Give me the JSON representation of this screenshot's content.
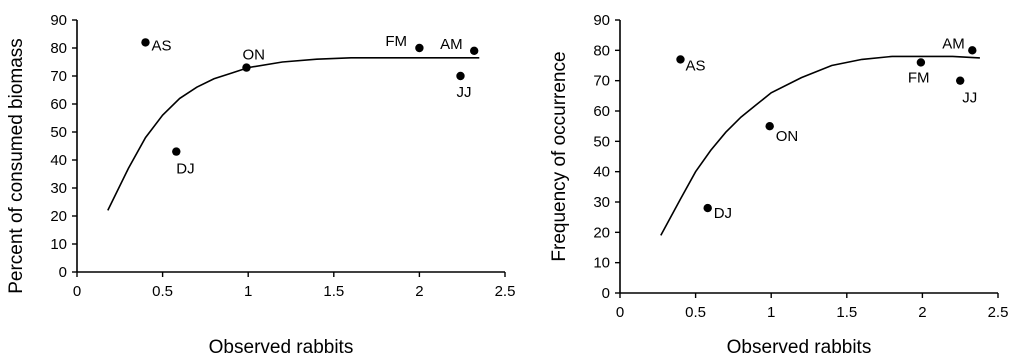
{
  "chart_data": [
    {
      "type": "scatter",
      "title": "",
      "xlabel": "Observed rabbits",
      "ylabel": "Percent of consumed biomass",
      "xlim": [
        0,
        2.5
      ],
      "ylim": [
        0,
        90
      ],
      "x_ticks": [
        "0",
        "0.5",
        "1",
        "1.5",
        "2",
        "2.5"
      ],
      "y_ticks": [
        "0",
        "10",
        "20",
        "30",
        "40",
        "50",
        "60",
        "70",
        "80",
        "90"
      ],
      "points": [
        {
          "label": "AS",
          "x": 0.4,
          "y": 82
        },
        {
          "label": "DJ",
          "x": 0.58,
          "y": 43
        },
        {
          "label": "ON",
          "x": 0.99,
          "y": 73
        },
        {
          "label": "FM",
          "x": 2.0,
          "y": 80
        },
        {
          "label": "JJ",
          "x": 2.24,
          "y": 70
        },
        {
          "label": "AM",
          "x": 2.32,
          "y": 79
        }
      ],
      "fit_curve": {
        "x": [
          0.18,
          0.3,
          0.4,
          0.5,
          0.6,
          0.7,
          0.8,
          0.9,
          1.0,
          1.2,
          1.4,
          1.6,
          1.8,
          2.0,
          2.2,
          2.35
        ],
        "y": [
          22,
          37,
          48,
          56,
          62,
          66,
          69,
          71,
          73,
          75,
          76,
          76.5,
          76.5,
          76.5,
          76.5,
          76.5
        ]
      }
    },
    {
      "type": "scatter",
      "title": "",
      "xlabel": "Observed rabbits",
      "ylabel": "Frequency of occurrence",
      "xlim": [
        0,
        2.5
      ],
      "ylim": [
        0,
        90
      ],
      "x_ticks": [
        "0",
        "0.5",
        "1",
        "1.5",
        "2",
        "2.5"
      ],
      "y_ticks": [
        "0",
        "10",
        "20",
        "30",
        "40",
        "50",
        "60",
        "70",
        "80",
        "90"
      ],
      "points": [
        {
          "label": "AS",
          "x": 0.4,
          "y": 77
        },
        {
          "label": "DJ",
          "x": 0.58,
          "y": 28
        },
        {
          "label": "ON",
          "x": 0.99,
          "y": 55
        },
        {
          "label": "FM",
          "x": 1.99,
          "y": 76
        },
        {
          "label": "JJ",
          "x": 2.25,
          "y": 70
        },
        {
          "label": "AM",
          "x": 2.33,
          "y": 80
        }
      ],
      "fit_curve": {
        "x": [
          0.27,
          0.4,
          0.5,
          0.6,
          0.7,
          0.8,
          0.9,
          1.0,
          1.2,
          1.4,
          1.6,
          1.8,
          2.0,
          2.2,
          2.38
        ],
        "y": [
          19,
          31,
          40,
          47,
          53,
          58,
          62,
          66,
          71,
          75,
          77,
          78,
          78,
          78,
          77.5
        ]
      }
    }
  ]
}
